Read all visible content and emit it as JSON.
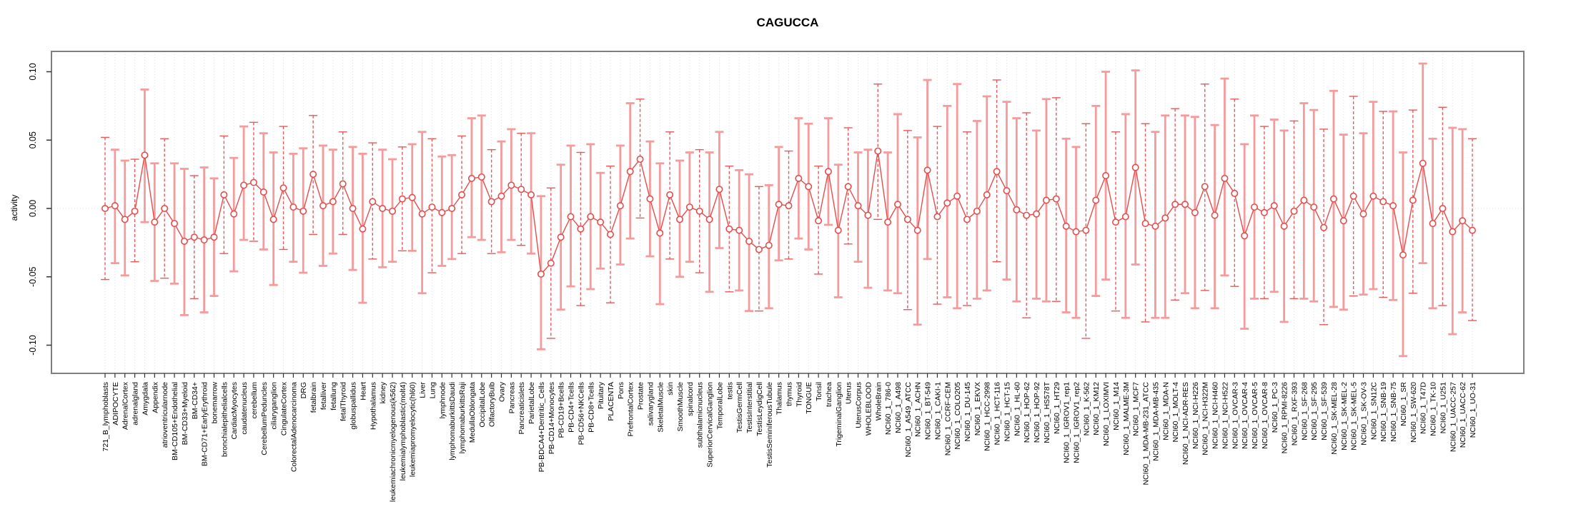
{
  "window": {
    "background": "#ffffff"
  },
  "chart_data": {
    "type": "scatter",
    "subtype": "point-estimates-with-error-bars",
    "title": "CAGUCCA",
    "xlabel": "",
    "ylabel": "activity",
    "ylim": [
      -0.12,
      0.115
    ],
    "yticks": [
      0.1,
      0.05,
      0.0,
      -0.05,
      -0.1
    ],
    "ytick_labels": [
      "0.10",
      "0.05",
      "0.00",
      "-0.05",
      "-0.10"
    ],
    "grid": "vertical dotted gridline at every category; dotted horizontal line at y=0",
    "legend_position": "none",
    "marker": "open-circle",
    "colors": {
      "series_line": "#e64c4c",
      "marker_stroke": "#e64c4c",
      "error_bar_light": "#f59b9b",
      "error_bar_dark": "#e85a5a",
      "gridline": "#dcdcdc",
      "zero_line": "#e0e0e0",
      "frame": "#7f7f7f",
      "text": "#000000"
    },
    "categories": [
      "721_B_lymphoblasts",
      "ADIPOCYTE",
      "AdrenalCortex",
      "adrenalgland",
      "Amygdala",
      "Appendix",
      "atrioventricularnode",
      "BM-CD105+Endothelial",
      "BM-CD33+Myeloid",
      "BM-CD34+",
      "BM-CD71+EarlyErythroid",
      "bonemarrow",
      "bronchialepithelialcells",
      "CardiacMyocytes",
      "caudatenucleus",
      "cerebellum",
      "CerebellumPeduncles",
      "ciliaryganglion",
      "CingulateCortex",
      "ColorectalAdenocarcinoma",
      "DRG",
      "fetalbrain",
      "fetalliver",
      "fetallung",
      "fetalThyroid",
      "globuspallidus",
      "Heart",
      "Hypothalamus",
      "kidney",
      "leukemiachronicmyelogenous(k562)",
      "leukemialymphoblastic(molt4)",
      "leukemiapromyelocytic(hl60)",
      "Liver",
      "Lung",
      "lymphnode",
      "lymphomaburkittsDaudi",
      "lymphomaburkittsRaji",
      "MedullaOblongata",
      "OccipitalLobe",
      "OlfactoryBulb",
      "Ovary",
      "Pancreas",
      "Pancreaticislets",
      "ParietalLobe",
      "PB-BDCA4+Dentritic_Cells",
      "PB-CD14+Monocytes",
      "PB-CD19+Bcells",
      "PB-CD4+Tcells",
      "PB-CD56+NKCells",
      "PB-CD8+Tcells",
      "Pituitary",
      "PLACENTA",
      "Pons",
      "PrefrontalCortex",
      "Prostate",
      "salivarygland",
      "SkeletalMuscle",
      "skin",
      "SmoothMuscle",
      "spinalcord",
      "subthalamicnucleus",
      "SuperiorCervicalGanglion",
      "TemporalLobe",
      "testis",
      "TestisGermCell",
      "TestisInterstitial",
      "TestisLeydigCell",
      "TestisSeminiferousTubule",
      "Thalamus",
      "thymus",
      "Thyroid",
      "TONGUE",
      "Tonsil",
      "trachea",
      "TrigeminalGanglion",
      "Uterus",
      "UterusCorpus",
      "WHOLEBLOOD",
      "WholeBrain",
      "NCI60_1_786-0",
      "NCI60_1_A498",
      "NCI60_1_A549_ATCC",
      "NCI60_1_ACHN",
      "NCI60_1_BT-549",
      "NCI60_1_CAKI-1",
      "NCI60_1_CCRF-CEM",
      "NCI60_1_COLO205",
      "NCI60_1_DU-145",
      "NCI60_1_EKVX",
      "NCI60_1_HCC-2998",
      "NCI60_1_HCT-116",
      "NCI60_1_HCT-15",
      "NCI60_1_HL-60",
      "NCI60_1_HOP-62",
      "NCI60_1_HOP-92",
      "NCI60_1_HS578T",
      "NCI60_1_HT29",
      "NCI60_1_IGROV1_rep1",
      "NCI60_1_IGROV1_rep2",
      "NCI60_1_K-562",
      "NCI60_1_KM12",
      "NCI60_1_LOXIMVI",
      "NCI60_1_M14",
      "NCI60_1_MALME-3M",
      "NCI60_1_MCF7",
      "NCI60_1_MDA-MB-231_ATCC",
      "NCI60_1_MDA-MB-435",
      "NCI60_1_MDA-N",
      "NCI60_1_MOLT-4",
      "NCI60_1_NCI-ADR-RES",
      "NCI60_1_NCI-H226",
      "NCI60_1_NCI-H322M",
      "NCI60_1_NCI-H460",
      "NCI60_1_NCI-H522",
      "NCI60_1_OVCAR-3",
      "NCI60_1_OVCAR-4",
      "NCI60_1_OVCAR-5",
      "NCI60_1_OVCAR-8",
      "NCI60_1_PC-3",
      "NCI60_1_RPMI-8226",
      "NCI60_1_RXF-393",
      "NCI60_1_SF-268",
      "NCI60_1_SF-295",
      "NCI60_1_SF-539",
      "NCI60_1_SK-MEL-28",
      "NCI60_1_SK-MEL-2",
      "NCI60_1_SK-MEL-5",
      "NCI60_1_SK-OV-3",
      "NCI60_1_SN12C",
      "NCI60_1_SNB-19",
      "NCI60_1_SNB-75",
      "NCI60_1_SR",
      "NCI60_1_SW-620",
      "NCI60_1_T47D",
      "NCI60_1_TK-10",
      "NCI60_1_U251",
      "NCI60_1_UACC-257",
      "NCI60_1_UACC-62",
      "NCI60_1_UO-31"
    ],
    "series": [
      {
        "name": "activity",
        "values": [
          0.0,
          0.002,
          -0.008,
          -0.002,
          0.039,
          -0.01,
          0.0,
          -0.011,
          -0.024,
          -0.021,
          -0.023,
          -0.021,
          0.01,
          -0.004,
          0.017,
          0.019,
          0.012,
          -0.008,
          0.015,
          0.001,
          -0.002,
          0.025,
          0.002,
          0.005,
          0.018,
          0.0,
          -0.015,
          0.005,
          0.0,
          -0.002,
          0.007,
          0.008,
          -0.004,
          0.001,
          -0.003,
          0.0,
          0.01,
          0.022,
          0.023,
          0.005,
          0.009,
          0.017,
          0.014,
          0.01,
          -0.048,
          -0.04,
          -0.021,
          -0.006,
          -0.015,
          -0.006,
          -0.01,
          -0.019,
          0.002,
          0.027,
          0.036,
          0.007,
          -0.018,
          0.01,
          -0.008,
          0.001,
          -0.002,
          -0.008,
          0.014,
          -0.015,
          -0.016,
          -0.024,
          -0.03,
          -0.027,
          0.003,
          0.002,
          0.022,
          0.016,
          -0.009,
          0.027,
          -0.016,
          0.016,
          0.002,
          -0.005,
          0.042,
          -0.01,
          0.003,
          -0.008,
          -0.016,
          0.028,
          -0.006,
          0.004,
          0.009,
          -0.008,
          -0.002,
          0.01,
          0.027,
          0.013,
          -0.001,
          -0.005,
          -0.004,
          0.006,
          0.007,
          -0.013,
          -0.017,
          -0.016,
          0.006,
          0.024,
          -0.01,
          -0.006,
          0.03,
          -0.011,
          -0.013,
          -0.007,
          0.003,
          0.003,
          -0.003,
          0.016,
          -0.005,
          0.022,
          0.011,
          -0.02,
          0.001,
          -0.003,
          0.002,
          -0.013,
          -0.002,
          0.006,
          0.001,
          -0.014,
          0.007,
          -0.009,
          0.009,
          -0.004,
          0.009,
          0.005,
          0.002,
          -0.034,
          0.006,
          0.033,
          -0.011,
          0.0,
          -0.017,
          -0.009,
          -0.016
        ],
        "ci_low": [
          -0.052,
          -0.04,
          -0.049,
          -0.039,
          -0.01,
          -0.053,
          -0.051,
          -0.055,
          -0.078,
          -0.066,
          -0.076,
          -0.064,
          -0.033,
          -0.046,
          -0.023,
          -0.024,
          -0.03,
          -0.056,
          -0.03,
          -0.039,
          -0.047,
          -0.019,
          -0.042,
          -0.033,
          -0.019,
          -0.045,
          -0.069,
          -0.037,
          -0.043,
          -0.039,
          -0.031,
          -0.031,
          -0.062,
          -0.047,
          -0.042,
          -0.037,
          -0.033,
          -0.021,
          -0.023,
          -0.033,
          -0.032,
          -0.023,
          -0.027,
          -0.033,
          -0.103,
          -0.095,
          -0.074,
          -0.057,
          -0.071,
          -0.059,
          -0.044,
          -0.069,
          -0.041,
          -0.022,
          -0.007,
          -0.035,
          -0.07,
          -0.037,
          -0.05,
          -0.039,
          -0.047,
          -0.061,
          -0.029,
          -0.061,
          -0.06,
          -0.075,
          -0.075,
          -0.073,
          -0.038,
          -0.037,
          -0.022,
          -0.03,
          -0.048,
          -0.012,
          -0.065,
          -0.026,
          -0.039,
          -0.058,
          -0.008,
          -0.06,
          -0.062,
          -0.074,
          -0.085,
          -0.037,
          -0.07,
          -0.065,
          -0.073,
          -0.071,
          -0.066,
          -0.06,
          -0.039,
          -0.052,
          -0.068,
          -0.08,
          -0.066,
          -0.068,
          -0.068,
          -0.076,
          -0.08,
          -0.095,
          -0.064,
          -0.052,
          -0.075,
          -0.08,
          -0.041,
          -0.083,
          -0.08,
          -0.08,
          -0.067,
          -0.062,
          -0.073,
          -0.06,
          -0.073,
          -0.049,
          -0.057,
          -0.088,
          -0.066,
          -0.066,
          -0.061,
          -0.083,
          -0.066,
          -0.066,
          -0.068,
          -0.085,
          -0.072,
          -0.074,
          -0.064,
          -0.063,
          -0.059,
          -0.065,
          -0.067,
          -0.108,
          -0.062,
          -0.04,
          -0.073,
          -0.071,
          -0.092,
          -0.076,
          -0.082
        ],
        "ci_high": [
          0.052,
          0.043,
          0.035,
          0.036,
          0.087,
          0.033,
          0.051,
          0.033,
          0.029,
          0.024,
          0.03,
          0.022,
          0.053,
          0.037,
          0.06,
          0.063,
          0.055,
          0.041,
          0.06,
          0.04,
          0.044,
          0.068,
          0.046,
          0.043,
          0.056,
          0.045,
          0.04,
          0.048,
          0.043,
          0.036,
          0.045,
          0.047,
          0.056,
          0.051,
          0.038,
          0.039,
          0.053,
          0.066,
          0.068,
          0.043,
          0.049,
          0.058,
          0.055,
          0.055,
          0.009,
          0.015,
          0.032,
          0.046,
          0.041,
          0.047,
          0.026,
          0.031,
          0.046,
          0.077,
          0.08,
          0.049,
          0.033,
          0.056,
          0.035,
          0.041,
          0.043,
          0.041,
          0.056,
          0.031,
          0.028,
          0.025,
          0.016,
          0.017,
          0.045,
          0.042,
          0.066,
          0.062,
          0.031,
          0.066,
          0.032,
          0.059,
          0.041,
          0.043,
          0.091,
          0.041,
          0.069,
          0.057,
          0.052,
          0.094,
          0.06,
          0.075,
          0.091,
          0.056,
          0.064,
          0.082,
          0.094,
          0.078,
          0.066,
          0.07,
          0.057,
          0.08,
          0.081,
          0.051,
          0.045,
          0.062,
          0.075,
          0.1,
          0.056,
          0.069,
          0.101,
          0.062,
          0.056,
          0.068,
          0.073,
          0.068,
          0.067,
          0.091,
          0.061,
          0.095,
          0.08,
          0.047,
          0.068,
          0.06,
          0.065,
          0.057,
          0.064,
          0.077,
          0.072,
          0.058,
          0.086,
          0.054,
          0.082,
          0.055,
          0.078,
          0.071,
          0.071,
          0.041,
          0.072,
          0.106,
          0.051,
          0.074,
          0.059,
          0.058,
          0.051
        ]
      }
    ]
  }
}
